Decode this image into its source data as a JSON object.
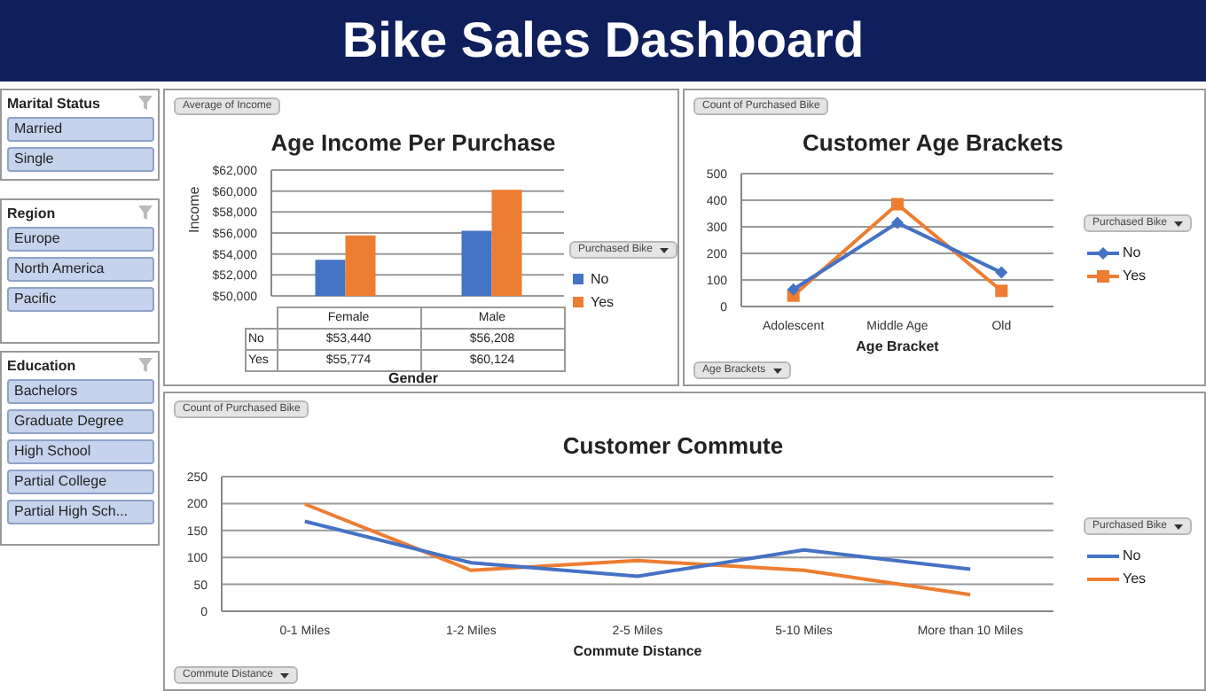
{
  "chart_data": [
    {
      "type": "other",
      "title": "Bike Sales Dashboard"
    },
    {
      "type": "other",
      "title": "Marital Status",
      "annotations": [
        "Married",
        "Single"
      ]
    },
    {
      "type": "other",
      "title": "Region",
      "annotations": [
        "Europe",
        "North America",
        "Pacific"
      ]
    },
    {
      "type": "other",
      "title": "Education",
      "annotations": [
        "Bachelors",
        "Graduate Degree",
        "High School",
        "Partial College",
        "Partial High Sch..."
      ]
    },
    {
      "type": "bar",
      "title": "Age Income Per Purchase",
      "xlabel": "Gender",
      "ylabel": "Income",
      "legend_title": "Purchased Bike",
      "legend": "right",
      "grid": "y",
      "annotations": [
        "Average of Income"
      ],
      "categories": [
        "Female",
        "Male"
      ],
      "ylim": [
        50000,
        62000
      ],
      "yticks": [
        {
          "value": 50000,
          "label": "$50,000"
        },
        {
          "value": 52000,
          "label": "$52,000"
        },
        {
          "value": 54000,
          "label": "$54,000"
        },
        {
          "value": 56000,
          "label": "$56,000"
        },
        {
          "value": 58000,
          "label": "$58,000"
        },
        {
          "value": 60000,
          "label": "$60,000"
        },
        {
          "value": 62000,
          "label": "$62,000"
        }
      ],
      "series": [
        {
          "name": "No",
          "color": "#4472c4",
          "values": [
            53440,
            56208
          ],
          "value_labels": [
            "$53,440",
            "$56,208"
          ]
        },
        {
          "name": "Yes",
          "color": "#ed7d31",
          "values": [
            55774,
            60124
          ],
          "value_labels": [
            "$55,774",
            "$60,124"
          ]
        }
      ]
    },
    {
      "type": "line",
      "title": "Customer Age Brackets",
      "xlabel": "Age Bracket",
      "legend_title": "Purchased Bike",
      "legend": "right",
      "grid": "y",
      "annotations": [
        "Count of Purchased Bike",
        "Age Brackets"
      ],
      "categories": [
        "Adolescent",
        "Middle Age",
        "Old"
      ],
      "ylim": [
        0,
        500
      ],
      "yticks": [
        0,
        100,
        200,
        300,
        400,
        500
      ],
      "series": [
        {
          "name": "No",
          "color": "#4472c4",
          "marker": "diamond",
          "values": [
            64,
            315,
            128
          ]
        },
        {
          "name": "Yes",
          "color": "#ed7d31",
          "marker": "square",
          "values": [
            41,
            385,
            59
          ]
        }
      ]
    },
    {
      "type": "line",
      "title": "Customer Commute",
      "xlabel": "Commute Distance",
      "legend_title": "Purchased Bike",
      "legend": "right",
      "grid": "y",
      "marker": "none",
      "annotations": [
        "Count of Purchased Bike",
        "Commute Distance"
      ],
      "categories": [
        "0-1 Miles",
        "1-2 Miles",
        "2-5 Miles",
        "5-10 Miles",
        "More than 10 Miles"
      ],
      "ylim": [
        0,
        250
      ],
      "yticks": [
        0,
        50,
        100,
        150,
        200,
        250
      ],
      "series": [
        {
          "name": "No",
          "color": "#4472c4",
          "values": [
            167,
            90,
            65,
            114,
            78
          ]
        },
        {
          "name": "Yes",
          "color": "#ed7d31",
          "values": [
            199,
            76,
            94,
            76,
            31
          ]
        }
      ]
    }
  ]
}
